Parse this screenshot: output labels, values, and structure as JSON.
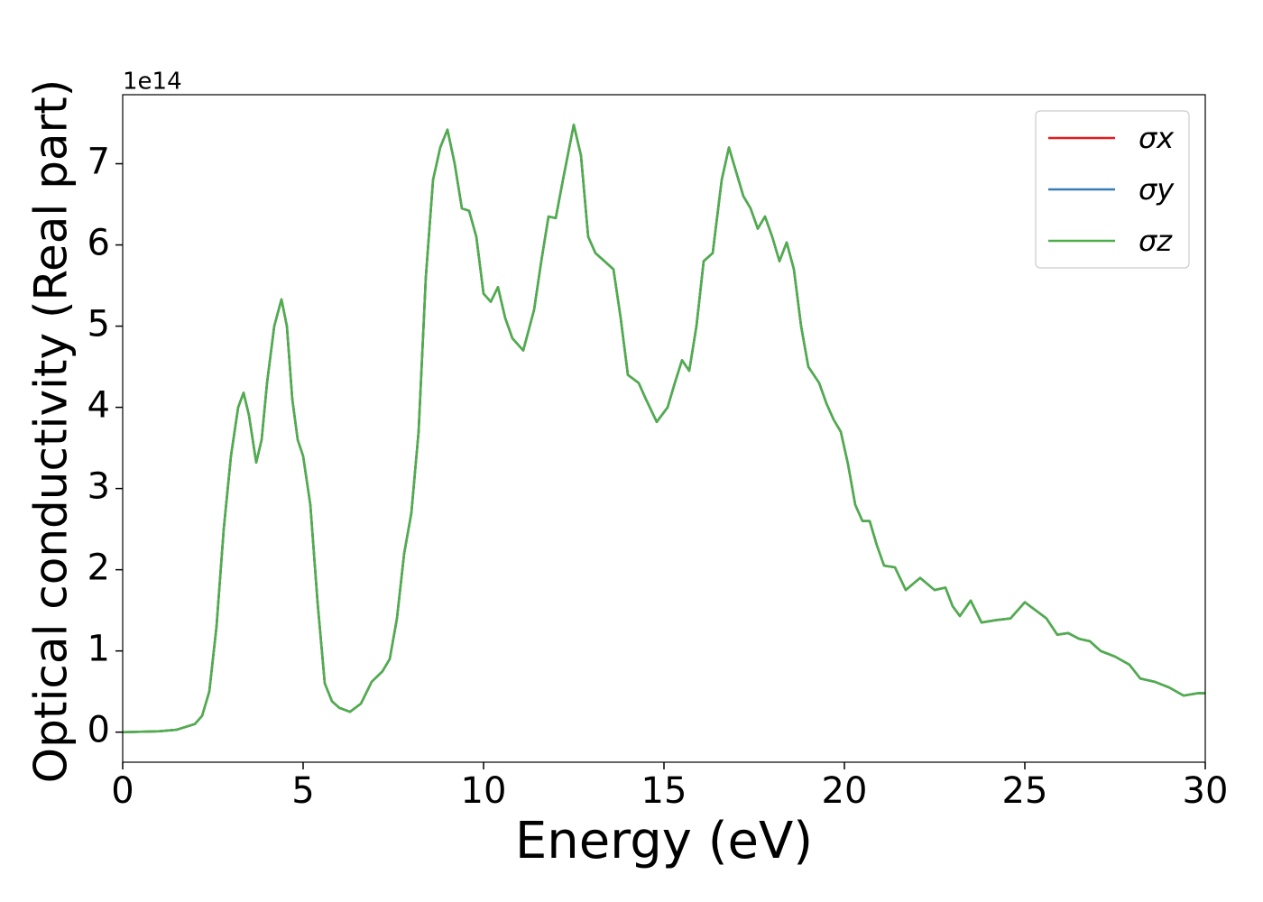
{
  "chart_data": {
    "type": "line",
    "xlabel": "Energy (eV)",
    "ylabel": "Optical conductivity (Real part)",
    "offset_label": "1e14",
    "x": [
      0,
      1,
      1.5,
      2.0,
      2.2,
      2.4,
      2.6,
      2.8,
      3.0,
      3.2,
      3.35,
      3.5,
      3.7,
      3.85,
      4.0,
      4.2,
      4.4,
      4.55,
      4.7,
      4.85,
      5.0,
      5.2,
      5.4,
      5.6,
      5.8,
      6.0,
      6.3,
      6.6,
      6.9,
      7.2,
      7.4,
      7.6,
      7.8,
      8.0,
      8.2,
      8.4,
      8.6,
      8.8,
      9.0,
      9.2,
      9.4,
      9.6,
      9.8,
      10.0,
      10.2,
      10.4,
      10.6,
      10.8,
      11.1,
      11.4,
      11.6,
      11.8,
      12.0,
      12.2,
      12.5,
      12.7,
      12.9,
      13.1,
      13.4,
      13.6,
      13.8,
      14.0,
      14.3,
      14.5,
      14.8,
      15.1,
      15.3,
      15.5,
      15.7,
      15.9,
      16.1,
      16.35,
      16.6,
      16.8,
      17.0,
      17.2,
      17.4,
      17.6,
      17.8,
      18.0,
      18.2,
      18.4,
      18.6,
      18.8,
      19.0,
      19.3,
      19.5,
      19.7,
      19.9,
      20.1,
      20.3,
      20.5,
      20.7,
      20.9,
      21.1,
      21.4,
      21.7,
      22.1,
      22.5,
      22.8,
      23.0,
      23.2,
      23.5,
      23.8,
      24.2,
      24.6,
      25.0,
      25.3,
      25.6,
      25.9,
      26.2,
      26.5,
      26.8,
      27.1,
      27.5,
      27.9,
      28.2,
      28.6,
      29.0,
      29.4,
      29.8,
      30.0
    ],
    "series": [
      {
        "name": "σx",
        "color": "#e41a1c",
        "values": [
          0,
          0.01,
          0.03,
          0.1,
          0.2,
          0.5,
          1.3,
          2.5,
          3.4,
          4.0,
          4.18,
          3.9,
          3.32,
          3.6,
          4.3,
          5.0,
          5.33,
          5.0,
          4.1,
          3.6,
          3.4,
          2.8,
          1.6,
          0.6,
          0.38,
          0.3,
          0.25,
          0.35,
          0.62,
          0.75,
          0.9,
          1.4,
          2.2,
          2.7,
          3.7,
          5.6,
          6.8,
          7.2,
          7.42,
          7.0,
          6.45,
          6.42,
          6.1,
          5.4,
          5.3,
          5.48,
          5.1,
          4.85,
          4.7,
          5.2,
          5.8,
          6.35,
          6.33,
          6.8,
          7.48,
          7.1,
          6.1,
          5.9,
          5.78,
          5.7,
          5.1,
          4.4,
          4.3,
          4.1,
          3.82,
          4.0,
          4.3,
          4.58,
          4.45,
          5.0,
          5.8,
          5.9,
          6.8,
          7.2,
          6.9,
          6.6,
          6.45,
          6.2,
          6.35,
          6.1,
          5.8,
          6.03,
          5.7,
          5.0,
          4.5,
          4.3,
          4.05,
          3.85,
          3.7,
          3.3,
          2.8,
          2.6,
          2.6,
          2.3,
          2.05,
          2.03,
          1.75,
          1.9,
          1.75,
          1.78,
          1.55,
          1.43,
          1.62,
          1.35,
          1.38,
          1.4,
          1.6,
          1.5,
          1.4,
          1.2,
          1.22,
          1.15,
          1.12,
          1.0,
          0.93,
          0.83,
          0.66,
          0.62,
          0.55,
          0.45,
          0.48,
          0.48
        ]
      },
      {
        "name": "σy",
        "color": "#377eb8",
        "values": [
          0,
          0.01,
          0.03,
          0.1,
          0.2,
          0.5,
          1.3,
          2.5,
          3.4,
          4.0,
          4.18,
          3.9,
          3.32,
          3.6,
          4.3,
          5.0,
          5.33,
          5.0,
          4.1,
          3.6,
          3.4,
          2.8,
          1.6,
          0.6,
          0.38,
          0.3,
          0.25,
          0.35,
          0.62,
          0.75,
          0.9,
          1.4,
          2.2,
          2.7,
          3.7,
          5.6,
          6.8,
          7.2,
          7.42,
          7.0,
          6.45,
          6.42,
          6.1,
          5.4,
          5.3,
          5.48,
          5.1,
          4.85,
          4.7,
          5.2,
          5.8,
          6.35,
          6.33,
          6.8,
          7.48,
          7.1,
          6.1,
          5.9,
          5.78,
          5.7,
          5.1,
          4.4,
          4.3,
          4.1,
          3.82,
          4.0,
          4.3,
          4.58,
          4.45,
          5.0,
          5.8,
          5.9,
          6.8,
          7.2,
          6.9,
          6.6,
          6.45,
          6.2,
          6.35,
          6.1,
          5.8,
          6.03,
          5.7,
          5.0,
          4.5,
          4.3,
          4.05,
          3.85,
          3.7,
          3.3,
          2.8,
          2.6,
          2.6,
          2.3,
          2.05,
          2.03,
          1.75,
          1.9,
          1.75,
          1.78,
          1.55,
          1.43,
          1.62,
          1.35,
          1.38,
          1.4,
          1.6,
          1.5,
          1.4,
          1.2,
          1.22,
          1.15,
          1.12,
          1.0,
          0.93,
          0.83,
          0.66,
          0.62,
          0.55,
          0.45,
          0.48,
          0.48
        ]
      },
      {
        "name": "σz",
        "color": "#4daf4a",
        "values": [
          0,
          0.01,
          0.03,
          0.1,
          0.2,
          0.5,
          1.3,
          2.5,
          3.4,
          4.0,
          4.18,
          3.9,
          3.32,
          3.6,
          4.3,
          5.0,
          5.33,
          5.0,
          4.1,
          3.6,
          3.4,
          2.8,
          1.6,
          0.6,
          0.38,
          0.3,
          0.25,
          0.35,
          0.62,
          0.75,
          0.9,
          1.4,
          2.2,
          2.7,
          3.7,
          5.6,
          6.8,
          7.2,
          7.42,
          7.0,
          6.45,
          6.42,
          6.1,
          5.4,
          5.3,
          5.48,
          5.1,
          4.85,
          4.7,
          5.2,
          5.8,
          6.35,
          6.33,
          6.8,
          7.48,
          7.1,
          6.1,
          5.9,
          5.78,
          5.7,
          5.1,
          4.4,
          4.3,
          4.1,
          3.82,
          4.0,
          4.3,
          4.58,
          4.45,
          5.0,
          5.8,
          5.9,
          6.8,
          7.2,
          6.9,
          6.6,
          6.45,
          6.2,
          6.35,
          6.1,
          5.8,
          6.03,
          5.7,
          5.0,
          4.5,
          4.3,
          4.05,
          3.85,
          3.7,
          3.3,
          2.8,
          2.6,
          2.6,
          2.3,
          2.05,
          2.03,
          1.75,
          1.9,
          1.75,
          1.78,
          1.55,
          1.43,
          1.62,
          1.35,
          1.38,
          1.4,
          1.6,
          1.5,
          1.4,
          1.2,
          1.22,
          1.15,
          1.12,
          1.0,
          0.93,
          0.83,
          0.66,
          0.62,
          0.55,
          0.45,
          0.48,
          0.48
        ]
      }
    ],
    "xlim": [
      0,
      30
    ],
    "xticks": [
      0,
      5,
      10,
      15,
      20,
      25,
      30
    ],
    "ylim": [
      -0.37,
      7.85
    ],
    "yticks": [
      0,
      1,
      2,
      3,
      4,
      5,
      6,
      7
    ],
    "grid": false,
    "legend": "upper right"
  }
}
